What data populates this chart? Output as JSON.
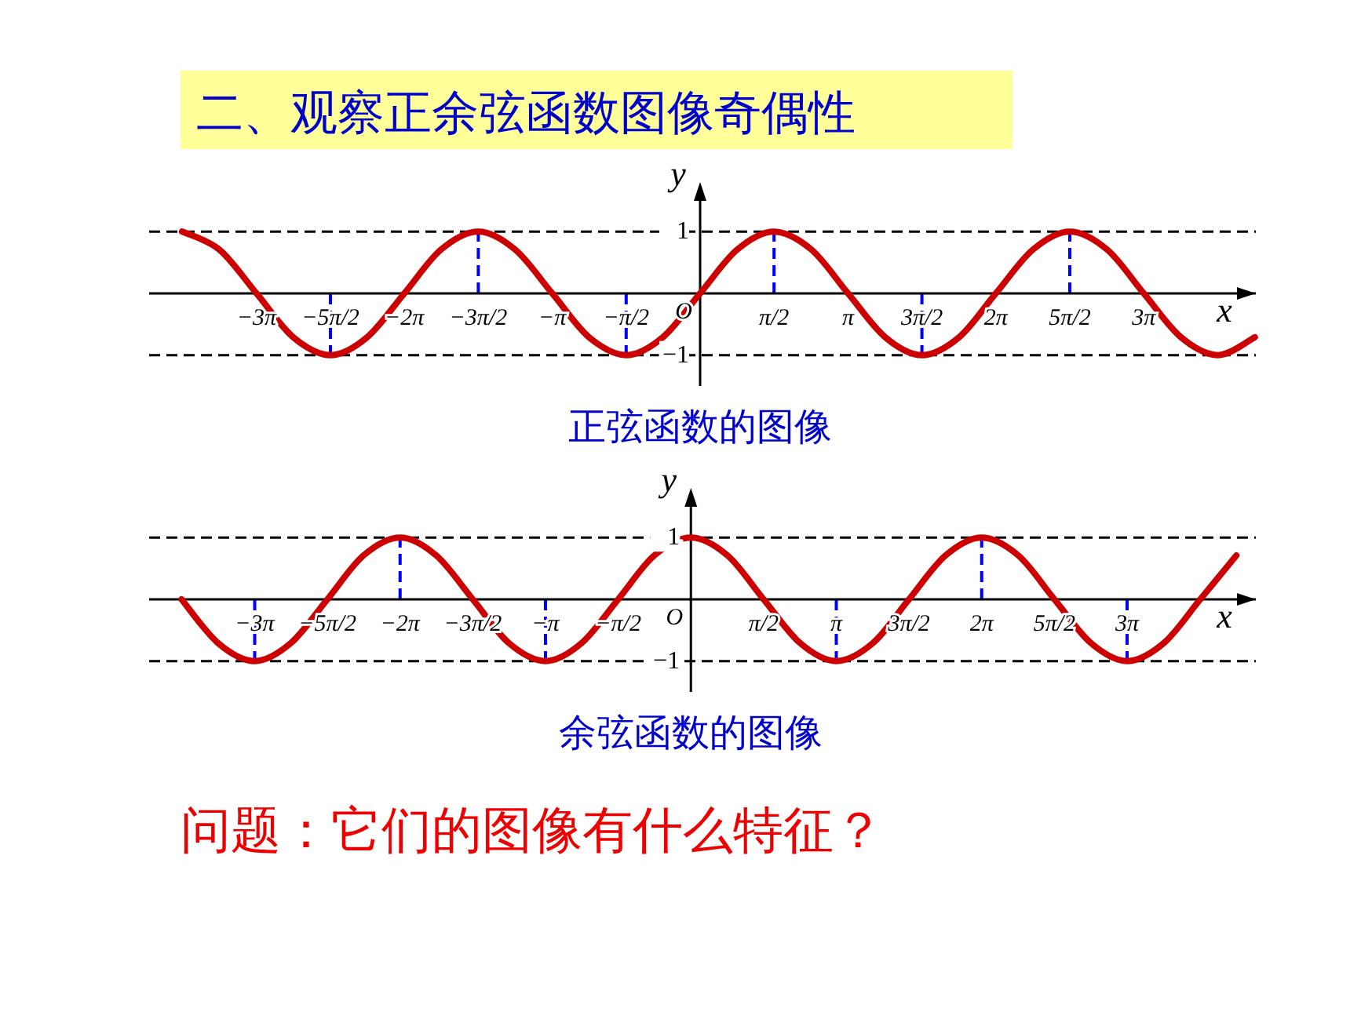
{
  "chart_data": [
    {
      "type": "line",
      "title": "正弦函数的图像",
      "xlabel": "x",
      "ylabel": "y",
      "annotations": [
        "二、观察正余弦函数图像奇偶性",
        "O"
      ],
      "x": [
        -11,
        -10.21,
        -9.42,
        -8.64,
        -7.85,
        -7.07,
        -6.28,
        -5.5,
        -4.71,
        -3.93,
        -3.14,
        -2.36,
        -1.57,
        -0.79,
        0,
        0.79,
        1.57,
        2.36,
        3.14,
        3.93,
        4.71,
        5.5,
        6.28,
        7.07,
        7.85,
        8.64,
        9.42,
        10.21,
        11,
        11.78
      ],
      "series": [
        {
          "color": "#cc0000",
          "line_style": "solid",
          "values": [
            1,
            0.71,
            0,
            -0.71,
            -1,
            -0.71,
            0,
            0.71,
            1,
            0.71,
            0,
            -0.71,
            -1,
            -0.71,
            0,
            0.71,
            1,
            0.71,
            0,
            -0.71,
            -1,
            -0.71,
            0,
            0.71,
            1,
            0.71,
            0,
            -0.71,
            -1,
            -0.71
          ]
        }
      ],
      "xlim": [
        -11.7,
        11.8
      ],
      "ylim": [
        -1.5,
        1.6
      ],
      "xticks": [
        {
          "value": -9.42,
          "label": "−3π"
        },
        {
          "value": -7.85,
          "label": "−5π/2"
        },
        {
          "value": -6.28,
          "label": "−2π"
        },
        {
          "value": -4.71,
          "label": "−3π/2"
        },
        {
          "value": -3.14,
          "label": "−π"
        },
        {
          "value": -1.57,
          "label": "−π/2"
        },
        {
          "value": 1.57,
          "label": "π/2"
        },
        {
          "value": 3.14,
          "label": "π"
        },
        {
          "value": 4.71,
          "label": "3π/2"
        },
        {
          "value": 6.28,
          "label": "2π"
        },
        {
          "value": 7.85,
          "label": "5π/2"
        },
        {
          "value": 9.42,
          "label": "3π"
        }
      ],
      "yticks": [
        1,
        {
          "value": -1,
          "label": "−1"
        }
      ],
      "ref_lines": [
        {
          "axis": "y",
          "value": 1,
          "color": "#000000",
          "line_style": "dashed"
        },
        {
          "axis": "y",
          "value": -1,
          "color": "#000000",
          "line_style": "dashed"
        },
        {
          "axis": "x",
          "value": -7.85,
          "color": "#0000ff",
          "line_style": "dashed"
        },
        {
          "axis": "x",
          "value": -4.71,
          "color": "#0000ff",
          "line_style": "dashed"
        },
        {
          "axis": "x",
          "value": -1.57,
          "color": "#0000ff",
          "line_style": "dashed"
        },
        {
          "axis": "x",
          "value": 1.57,
          "color": "#0000ff",
          "line_style": "dashed"
        },
        {
          "axis": "x",
          "value": 4.71,
          "color": "#0000ff",
          "line_style": "dashed"
        },
        {
          "axis": "x",
          "value": 7.85,
          "color": "#0000ff",
          "line_style": "dashed"
        }
      ]
    },
    {
      "type": "line",
      "title": "余弦函数的图像",
      "xlabel": "x",
      "ylabel": "y",
      "annotations": [
        "问题：它们的图像有什么特征？",
        "O"
      ],
      "x": [
        -11,
        -10.21,
        -9.42,
        -8.64,
        -7.85,
        -7.07,
        -6.28,
        -5.5,
        -4.71,
        -3.93,
        -3.14,
        -2.36,
        -1.57,
        -0.79,
        0,
        0.79,
        1.57,
        2.36,
        3.14,
        3.93,
        4.71,
        5.5,
        6.28,
        7.07,
        7.85,
        8.64,
        9.42,
        10.21,
        11,
        11.78
      ],
      "series": [
        {
          "color": "#cc0000",
          "line_style": "solid",
          "values": [
            0,
            -0.71,
            -1,
            -0.71,
            0,
            0.71,
            1,
            0.71,
            0,
            -0.71,
            -1,
            -0.71,
            0,
            0.71,
            1,
            0.71,
            0,
            -0.71,
            -1,
            -0.71,
            0,
            0.71,
            1,
            0.71,
            0,
            -0.71,
            -1,
            -0.71,
            0,
            0.71
          ]
        }
      ],
      "xlim": [
        -11.7,
        12.2
      ],
      "ylim": [
        -1.5,
        1.6
      ],
      "xticks": [
        {
          "value": -9.42,
          "label": "−3π"
        },
        {
          "value": -7.85,
          "label": "−5π/2"
        },
        {
          "value": -6.28,
          "label": "−2π"
        },
        {
          "value": -4.71,
          "label": "−3π/2"
        },
        {
          "value": -3.14,
          "label": "−π"
        },
        {
          "value": -1.57,
          "label": "−π/2"
        },
        {
          "value": 1.57,
          "label": "π/2"
        },
        {
          "value": 3.14,
          "label": "π"
        },
        {
          "value": 4.71,
          "label": "3π/2"
        },
        {
          "value": 6.28,
          "label": "2π"
        },
        {
          "value": 7.85,
          "label": "5π/2"
        },
        {
          "value": 9.42,
          "label": "3π"
        }
      ],
      "yticks": [
        1,
        {
          "value": -1,
          "label": "−1"
        }
      ],
      "ref_lines": [
        {
          "axis": "y",
          "value": 1,
          "color": "#000000",
          "line_style": "dashed"
        },
        {
          "axis": "y",
          "value": -1,
          "color": "#000000",
          "line_style": "dashed"
        },
        {
          "axis": "x",
          "value": -9.42,
          "color": "#0000ff",
          "line_style": "dashed"
        },
        {
          "axis": "x",
          "value": -6.28,
          "color": "#0000ff",
          "line_style": "dashed"
        },
        {
          "axis": "x",
          "value": -3.14,
          "color": "#0000ff",
          "line_style": "dashed"
        },
        {
          "axis": "x",
          "value": 3.14,
          "color": "#0000ff",
          "line_style": "dashed"
        },
        {
          "axis": "x",
          "value": 6.28,
          "color": "#0000ff",
          "line_style": "dashed"
        },
        {
          "axis": "x",
          "value": 9.42,
          "color": "#0000ff",
          "line_style": "dashed"
        }
      ]
    }
  ]
}
